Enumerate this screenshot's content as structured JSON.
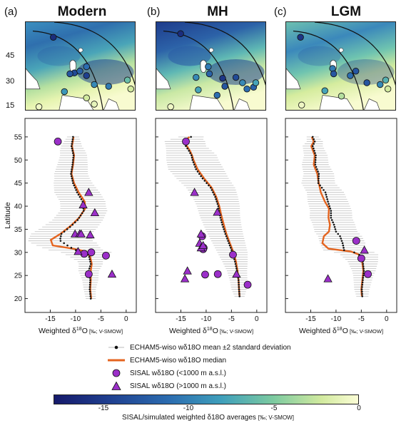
{
  "panels": [
    {
      "letter": "(a)",
      "title": "Modern",
      "mean_series": [
        [
          -10.5,
          55
        ],
        [
          -10.8,
          53
        ],
        [
          -10.4,
          51
        ],
        [
          -10.6,
          49
        ],
        [
          -10.9,
          47
        ],
        [
          -10.5,
          45
        ],
        [
          -9.7,
          43
        ],
        [
          -8.6,
          41
        ],
        [
          -8.4,
          39
        ],
        [
          -9.6,
          37
        ],
        [
          -11.1,
          35.5
        ],
        [
          -12.8,
          34
        ],
        [
          -13.1,
          32.6
        ],
        [
          -11.2,
          31.2
        ],
        [
          -9.6,
          30.3
        ],
        [
          -7.9,
          30
        ],
        [
          -7.3,
          29
        ],
        [
          -7.0,
          27.5
        ],
        [
          -7.4,
          26
        ],
        [
          -7.1,
          24
        ],
        [
          -7.2,
          22
        ],
        [
          -7.0,
          20
        ]
      ],
      "median_series": [
        [
          -10.4,
          55
        ],
        [
          -10.7,
          53
        ],
        [
          -10.3,
          51
        ],
        [
          -10.5,
          49
        ],
        [
          -10.8,
          47
        ],
        [
          -10.3,
          45
        ],
        [
          -9.4,
          43
        ],
        [
          -8.2,
          41
        ],
        [
          -8.1,
          39.5
        ],
        [
          -9.3,
          37.5
        ],
        [
          -10.9,
          35.8
        ],
        [
          -13.0,
          34
        ],
        [
          -14.9,
          32.7
        ],
        [
          -14.5,
          31.5
        ],
        [
          -10.6,
          30.8
        ],
        [
          -7.9,
          30.2
        ],
        [
          -7.1,
          29
        ],
        [
          -6.8,
          27.5
        ],
        [
          -7.0,
          26
        ],
        [
          -7.0,
          24
        ],
        [
          -7.1,
          22
        ],
        [
          -6.9,
          20
        ]
      ],
      "sd_band": [
        [
          55,
          1.2
        ],
        [
          52,
          2.5
        ],
        [
          49,
          3
        ],
        [
          46,
          3.5
        ],
        [
          43,
          4.5
        ],
        [
          40,
          4.5
        ],
        [
          37,
          5
        ],
        [
          34,
          6
        ],
        [
          32,
          6.5
        ],
        [
          30,
          5
        ],
        [
          28,
          2.5
        ],
        [
          25,
          1.8
        ],
        [
          22,
          1.2
        ],
        [
          20,
          1
        ]
      ],
      "circles": [
        [
          -13.5,
          54
        ],
        [
          -8.3,
          29.7
        ],
        [
          -6.9,
          30
        ],
        [
          -4.0,
          29.3
        ],
        [
          -7.4,
          25.3
        ]
      ],
      "triangles": [
        [
          -7.4,
          43
        ],
        [
          -8.5,
          40.3
        ],
        [
          -6.2,
          38.6
        ],
        [
          -10.1,
          34
        ],
        [
          -9.2,
          34
        ],
        [
          -8.9,
          34
        ],
        [
          -7.1,
          33.8
        ],
        [
          -9.5,
          30.2
        ],
        [
          -2.8,
          25.3
        ]
      ],
      "stations": [
        [
          0.25,
          0.17,
          0.1
        ],
        [
          0.55,
          0.5,
          0.4
        ],
        [
          0.44,
          0.57,
          0.25
        ],
        [
          0.55,
          0.6,
          0.2
        ],
        [
          0.62,
          0.7,
          0.5
        ],
        [
          0.75,
          0.72,
          0.45
        ],
        [
          0.92,
          0.65,
          0.7
        ],
        [
          0.95,
          0.75,
          0.9
        ],
        [
          0.35,
          0.78,
          0.55
        ],
        [
          0.55,
          0.85,
          0.9
        ],
        [
          0.62,
          0.92,
          0.95
        ],
        [
          0.12,
          0.95,
          0.97
        ],
        [
          0.4,
          0.58,
          0.3
        ],
        [
          0.49,
          0.55,
          0.35
        ]
      ]
    },
    {
      "letter": "(b)",
      "title": "MH",
      "mean_series": [
        [
          -13.0,
          55
        ],
        [
          -13.8,
          54.5
        ],
        [
          -14.2,
          54
        ],
        [
          -14.0,
          53
        ],
        [
          -13.4,
          52
        ],
        [
          -12.9,
          51
        ],
        [
          -12.7,
          50
        ],
        [
          -12.0,
          48
        ],
        [
          -10.7,
          46
        ],
        [
          -9.1,
          44
        ],
        [
          -8.2,
          42
        ],
        [
          -7.6,
          40
        ],
        [
          -7.3,
          38
        ],
        [
          -6.8,
          36
        ],
        [
          -6.2,
          34
        ],
        [
          -5.5,
          32
        ],
        [
          -4.8,
          30
        ],
        [
          -4.3,
          28
        ],
        [
          -3.9,
          26
        ],
        [
          -3.6,
          24
        ],
        [
          -3.5,
          22
        ],
        [
          -3.4,
          20.5
        ]
      ],
      "median_series": [
        [
          -13.3,
          55
        ],
        [
          -14.0,
          54.3
        ],
        [
          -14.2,
          53.8
        ],
        [
          -13.8,
          53
        ],
        [
          -13.2,
          52
        ],
        [
          -12.8,
          51
        ],
        [
          -12.5,
          50
        ],
        [
          -11.7,
          48
        ],
        [
          -10.4,
          46
        ],
        [
          -8.9,
          44
        ],
        [
          -8.0,
          42
        ],
        [
          -7.4,
          40
        ],
        [
          -7.0,
          38
        ],
        [
          -6.5,
          36
        ],
        [
          -6.0,
          34
        ],
        [
          -5.3,
          32
        ],
        [
          -4.6,
          30
        ],
        [
          -4.1,
          28
        ],
        [
          -3.8,
          26
        ],
        [
          -3.6,
          24
        ],
        [
          -3.5,
          22
        ],
        [
          -3.4,
          20.5
        ]
      ],
      "sd_band": [
        [
          55,
          2.5
        ],
        [
          54,
          4
        ],
        [
          53,
          4
        ],
        [
          51,
          5
        ],
        [
          48,
          5.5
        ],
        [
          45,
          5
        ],
        [
          42,
          4.5
        ],
        [
          38,
          4
        ],
        [
          34,
          3.5
        ],
        [
          30,
          3
        ],
        [
          26,
          2
        ],
        [
          22,
          1.5
        ],
        [
          20.5,
          1
        ]
      ],
      "circles": [
        [
          -14.0,
          54
        ],
        [
          -10.8,
          33.5
        ],
        [
          -10.5,
          31
        ],
        [
          -10.6,
          30.7
        ],
        [
          -4.7,
          29.5
        ],
        [
          -7.7,
          25.3
        ],
        [
          -10.2,
          25.2
        ],
        [
          -1.8,
          23
        ]
      ],
      "triangles": [
        [
          -12.3,
          43
        ],
        [
          -7.8,
          38.7
        ],
        [
          -11.0,
          34
        ],
        [
          -11.3,
          32
        ],
        [
          -11.0,
          31
        ],
        [
          -10.6,
          31.5
        ],
        [
          -13.7,
          26
        ],
        [
          -14.2,
          24.3
        ],
        [
          -4.0,
          25.3
        ]
      ],
      "stations": [
        [
          0.22,
          0.13,
          0.1
        ],
        [
          0.47,
          0.5,
          0.45
        ],
        [
          0.48,
          0.58,
          0.35
        ],
        [
          0.6,
          0.63,
          0.15
        ],
        [
          0.62,
          0.72,
          0.3
        ],
        [
          0.78,
          0.68,
          0.5
        ],
        [
          0.82,
          0.75,
          0.4
        ],
        [
          0.88,
          0.73,
          0.35
        ],
        [
          0.9,
          0.68,
          0.6
        ],
        [
          0.38,
          0.76,
          0.6
        ],
        [
          0.55,
          0.82,
          0.4
        ],
        [
          0.13,
          0.95,
          0.97
        ],
        [
          0.72,
          0.62,
          0.25
        ],
        [
          0.36,
          0.62,
          0.5
        ]
      ]
    },
    {
      "letter": "(c)",
      "title": "LGM",
      "mean_series": [
        [
          -14.6,
          55
        ],
        [
          -14.2,
          54
        ],
        [
          -14.6,
          53
        ],
        [
          -14.0,
          51
        ],
        [
          -14.1,
          49
        ],
        [
          -13.4,
          47
        ],
        [
          -13.5,
          45
        ],
        [
          -12.1,
          43
        ],
        [
          -11.6,
          41
        ],
        [
          -11.0,
          39
        ],
        [
          -11.0,
          37.5
        ],
        [
          -10.4,
          36
        ],
        [
          -10.0,
          34.5
        ],
        [
          -9.2,
          33.5
        ],
        [
          -8.7,
          32
        ],
        [
          -8.4,
          30.5
        ],
        [
          -6.4,
          30
        ],
        [
          -5.4,
          29.5
        ],
        [
          -4.7,
          28
        ],
        [
          -4.5,
          26
        ],
        [
          -4.7,
          24
        ],
        [
          -4.9,
          22
        ],
        [
          -4.8,
          20.5
        ]
      ],
      "median_series": [
        [
          -14.8,
          55
        ],
        [
          -14.4,
          54
        ],
        [
          -14.9,
          53
        ],
        [
          -14.2,
          51
        ],
        [
          -14.4,
          49
        ],
        [
          -13.7,
          47
        ],
        [
          -13.5,
          45.5
        ],
        [
          -13.0,
          43
        ],
        [
          -12.2,
          41
        ],
        [
          -11.4,
          39.5
        ],
        [
          -11.5,
          37.5
        ],
        [
          -11.2,
          36
        ],
        [
          -11.4,
          34.5
        ],
        [
          -12.4,
          33.5
        ],
        [
          -12.7,
          32
        ],
        [
          -11.5,
          30.8
        ],
        [
          -7.1,
          30.2
        ],
        [
          -5.6,
          29.6
        ],
        [
          -4.9,
          28.5
        ],
        [
          -4.6,
          26
        ],
        [
          -4.8,
          24
        ],
        [
          -5.0,
          22
        ],
        [
          -4.9,
          20.5
        ]
      ],
      "sd_band": [
        [
          55,
          1.2
        ],
        [
          53,
          2
        ],
        [
          50,
          2.5
        ],
        [
          47,
          3
        ],
        [
          44,
          3.5
        ],
        [
          41,
          4
        ],
        [
          38,
          4.2
        ],
        [
          35,
          4.2
        ],
        [
          32,
          4.5
        ],
        [
          30,
          4
        ],
        [
          28,
          3
        ],
        [
          25,
          2
        ],
        [
          22,
          1.5
        ],
        [
          20.5,
          1.2
        ]
      ],
      "circles": [
        [
          -6.0,
          32.5
        ],
        [
          -5.0,
          28.7
        ],
        [
          -3.7,
          25.3
        ]
      ],
      "triangles": [
        [
          -4.4,
          30.5
        ],
        [
          -11.6,
          24.3
        ]
      ],
      "stations": [
        [
          0.13,
          0.17,
          0.15
        ],
        [
          0.42,
          0.52,
          0.45
        ],
        [
          0.43,
          0.58,
          0.3
        ],
        [
          0.58,
          0.6,
          0.4
        ],
        [
          0.73,
          0.68,
          0.3
        ],
        [
          0.85,
          0.7,
          0.5
        ],
        [
          0.9,
          0.65,
          0.65
        ],
        [
          0.92,
          0.75,
          0.9
        ],
        [
          0.35,
          0.77,
          0.6
        ],
        [
          0.5,
          0.83,
          0.85
        ],
        [
          0.14,
          0.93,
          0.97
        ],
        [
          0.63,
          0.55,
          0.3
        ]
      ]
    }
  ],
  "chart_data": {
    "type": "line",
    "xlabel_prefix": "Weighted ",
    "xlabel_delta": "δ",
    "xlabel_sup": "18",
    "xlabel_O": "O",
    "xlabel_units": " [‰; V-SMOW]",
    "ylabel": "Latitude",
    "xticks": [
      -15,
      -10,
      -5,
      0
    ],
    "yticks": [
      20,
      25,
      30,
      35,
      40,
      45,
      50,
      55
    ],
    "xlim": [
      -20,
      2
    ],
    "ylim": [
      17,
      59
    ],
    "map_yticks": [
      "45",
      "30",
      "15"
    ]
  },
  "legend": {
    "mean": "ECHAM5-wiso wδ18O mean ±2 standard deviation",
    "median": "ECHAM5-wiso wδ18O median",
    "circle": "SISAL wδ18O (<1000 m a.s.l.)",
    "triangle": "SISAL wδ18O (>1000 m a.s.l.)"
  },
  "colorbar": {
    "ticks": [
      "-15",
      "-10",
      "-5",
      "0"
    ],
    "label": "SISAL/simulated weighted δ18O averages",
    "units": "[‰; V-SMOW]",
    "colors": [
      "#161a6b",
      "#fbfdd6"
    ]
  },
  "colors": {
    "median": "#e4641f",
    "mean": "#111111",
    "band": "#c8c8c8",
    "marker": "#9b2fc9"
  }
}
